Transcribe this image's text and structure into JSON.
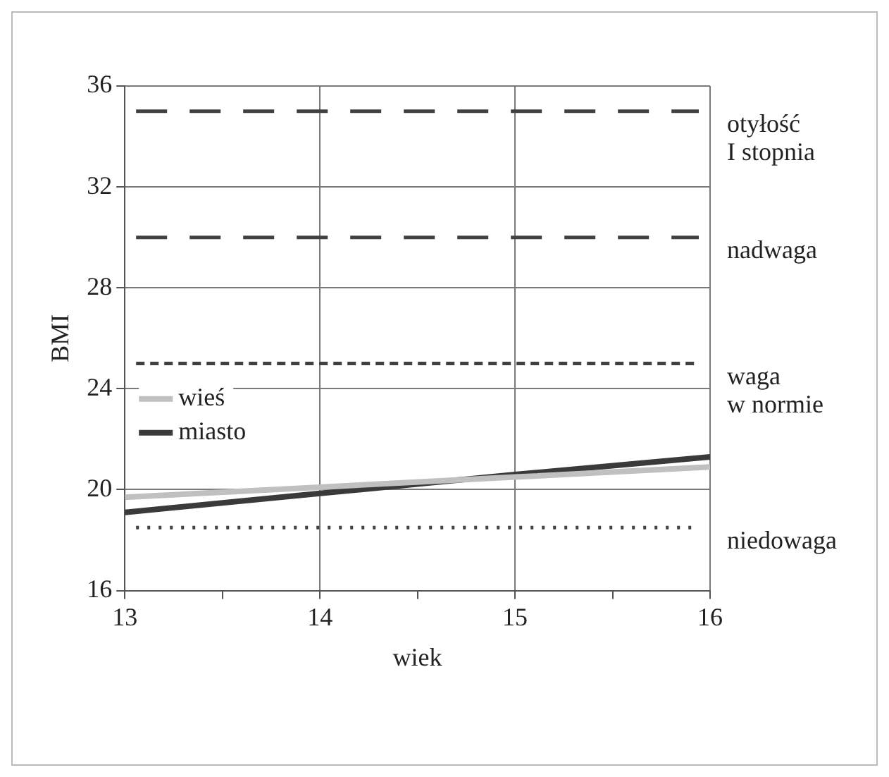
{
  "chart_data": {
    "type": "line",
    "xlabel": "wiek",
    "ylabel": "BMI",
    "x": [
      13,
      14,
      15,
      16
    ],
    "series": [
      {
        "name": "wieś",
        "color": "#c0c0c0",
        "values": [
          19.7,
          20.1,
          20.5,
          20.9
        ]
      },
      {
        "name": "miasto",
        "color": "#3a3a3a",
        "values": [
          19.1,
          19.85,
          20.6,
          21.3
        ]
      }
    ],
    "xlim": [
      13,
      16
    ],
    "xticks": [
      13,
      {
        "value": 13.5,
        "label": null
      },
      14,
      {
        "value": 14.5,
        "label": null
      },
      15,
      {
        "value": 15.5,
        "label": null
      },
      16
    ],
    "ylim": [
      16,
      36
    ],
    "yticks": [
      16,
      20,
      24,
      28,
      32,
      36
    ],
    "ref_lines": [
      {
        "axis": "y",
        "value": 35,
        "label": "otyłość\nI stopnia",
        "color": "#404040",
        "line_style": "longdash"
      },
      {
        "axis": "y",
        "value": 30,
        "label": "nadwaga",
        "color": "#404040",
        "line_style": "longdash"
      },
      {
        "axis": "y",
        "value": 25,
        "label": "waga\nw normie",
        "color": "#404040",
        "line_style": "dashed"
      },
      {
        "axis": "y",
        "value": 18.5,
        "label": "niedowaga",
        "color": "#404040",
        "line_style": "dotted"
      }
    ],
    "grid": true,
    "legend": "left",
    "marker": "none",
    "line_style": "solid"
  }
}
